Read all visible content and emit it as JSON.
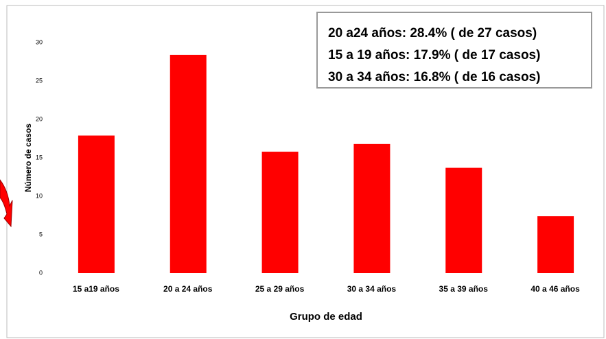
{
  "chart_data": {
    "type": "bar",
    "annotations": [
      "20 a24 años: 28.4% ( de 27 casos)",
      "15 a 19 años: 17.9% ( de 17 casos)",
      "30 a 34 años: 16.8% ( de 16 casos)"
    ],
    "ylabel": "Número de casos",
    "xlabel": "Grupo de edad",
    "categories": [
      "15 a19 años",
      "20 a 24 años",
      "25 a 29 años",
      "30 a 34 años",
      "35 a 39 años",
      "40 a 46 años"
    ],
    "values": [
      17.9,
      28.4,
      15.8,
      16.8,
      13.7,
      7.4
    ],
    "color": "#ff0000",
    "ylim": [
      0,
      30
    ],
    "yticks": [
      0,
      5,
      10,
      15,
      20,
      25,
      30
    ],
    "grid": false
  }
}
